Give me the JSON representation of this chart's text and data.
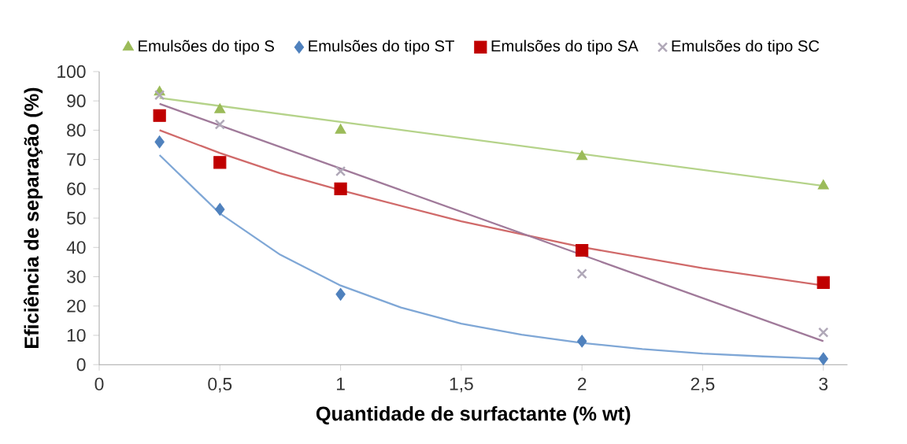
{
  "chart_data": {
    "type": "scatter",
    "xlabel": "Quantidade de surfactante (% wt)",
    "ylabel": "Eficiência de separação (%)",
    "xlim": [
      0,
      3.1
    ],
    "ylim": [
      0,
      100
    ],
    "xticks": [
      0,
      {
        "value": 0.5,
        "label": "0,5"
      },
      1,
      {
        "value": 1.5,
        "label": "1,5"
      },
      2,
      {
        "value": 2.5,
        "label": "2,5"
      },
      3
    ],
    "yticks": [
      0,
      10,
      20,
      30,
      40,
      50,
      60,
      70,
      80,
      90,
      100
    ],
    "grid": false,
    "legend": "top",
    "series": [
      {
        "name": "Emulsões do tipo S",
        "marker": "triangle",
        "color": "#9bbb59",
        "x": [
          0.25,
          0.5,
          1,
          2,
          3
        ],
        "values": [
          93,
          87,
          80,
          71,
          61
        ]
      },
      {
        "name": "Emulsões do tipo ST",
        "marker": "diamond",
        "color": "#4f81bd",
        "x": [
          0.25,
          0.5,
          1,
          2,
          3
        ],
        "values": [
          76,
          53,
          24,
          8,
          2
        ]
      },
      {
        "name": "Emulsões do tipo SA",
        "marker": "square",
        "color": "#c00000",
        "x": [
          0.25,
          0.5,
          1,
          2,
          3
        ],
        "values": [
          85,
          69,
          60,
          39,
          28
        ]
      },
      {
        "name": "Emulsões do tipo SC",
        "marker": "cross",
        "color": "#b0a8b8",
        "x": [
          0.25,
          0.5,
          1,
          2,
          3
        ],
        "values": [
          92,
          82,
          66,
          31,
          11
        ]
      },
      {
        "type": "line",
        "marker": "none",
        "color": "#b5d38a",
        "x": [
          0.25,
          3
        ],
        "values": [
          91,
          61
        ]
      },
      {
        "type": "line",
        "marker": "none",
        "color": "#7fa7d6",
        "x": [
          0.25,
          0.5,
          0.75,
          1,
          1.25,
          1.5,
          1.75,
          2,
          2.25,
          2.5,
          2.75,
          3
        ],
        "values": [
          71.5,
          51.6,
          37.5,
          27,
          19.5,
          14,
          10.2,
          7.4,
          5.3,
          3.8,
          2.8,
          2
        ]
      },
      {
        "type": "line",
        "marker": "none",
        "color": "#d06a6a",
        "x": [
          0.25,
          0.5,
          0.75,
          1,
          1.5,
          2,
          2.5,
          3
        ],
        "values": [
          80,
          72.2,
          65.3,
          59.5,
          48.9,
          40.1,
          32.9,
          27
        ]
      },
      {
        "type": "line",
        "marker": "none",
        "color": "#a07a9a",
        "x": [
          0.25,
          3
        ],
        "values": [
          89,
          8
        ]
      }
    ]
  }
}
